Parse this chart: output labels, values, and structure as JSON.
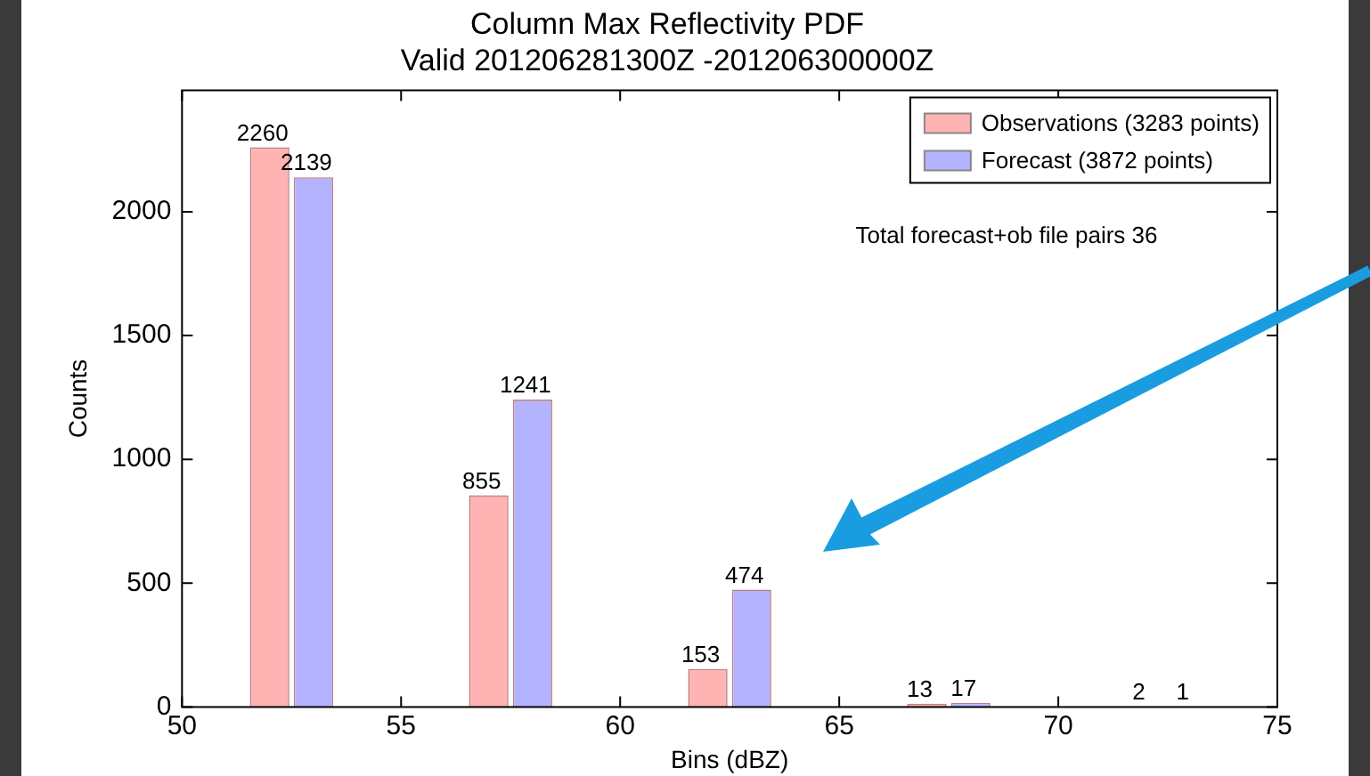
{
  "chart_data": {
    "type": "bar",
    "title": "Column Max Reflectivity PDF",
    "subtitle": "Valid 201206281300Z -201206300000Z",
    "xlabel": "Bins (dBZ)",
    "ylabel": "Counts",
    "series": [
      {
        "name": "Observations (3283 points)",
        "color": "#ffb3b3",
        "x": [
          52,
          57,
          62,
          67,
          72
        ],
        "values": [
          2260,
          855,
          153,
          13,
          2
        ]
      },
      {
        "name": "Forecast (3872 points)",
        "color": "#b3b3ff",
        "x": [
          53,
          58,
          63,
          68,
          73
        ],
        "values": [
          2139,
          1241,
          474,
          17,
          1
        ]
      }
    ],
    "xlim": [
      50,
      75
    ],
    "xticks": [
      50,
      55,
      60,
      65,
      70,
      75
    ],
    "ylim": [
      0,
      2490
    ],
    "yticks": [
      0,
      500,
      1000,
      1500,
      2000
    ],
    "data_labels": true,
    "legend": "top right",
    "grid": false,
    "annotations": [
      "Total forecast+ob file pairs 36"
    ]
  }
}
